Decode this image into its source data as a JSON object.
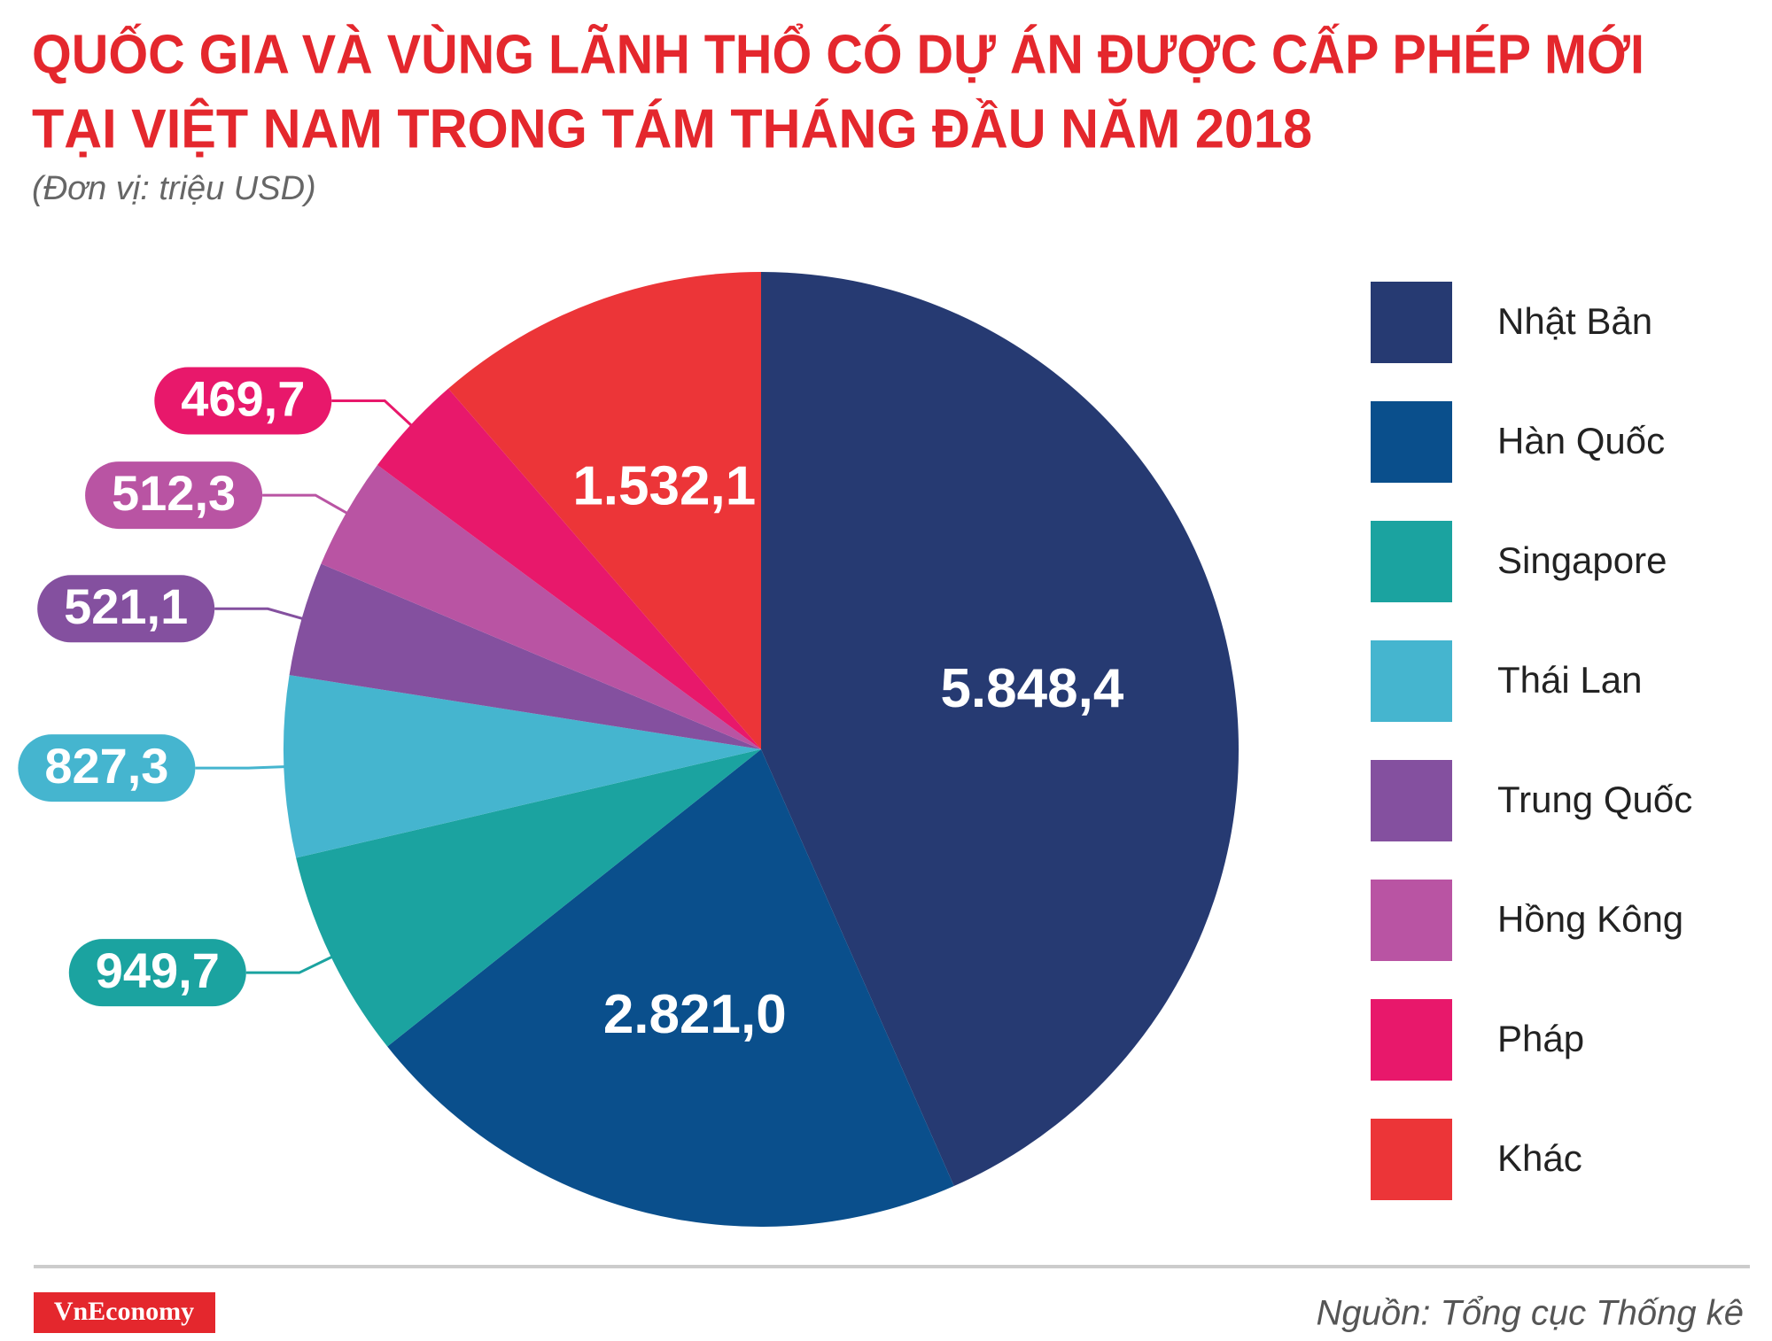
{
  "chart_data": {
    "type": "pie",
    "title": [
      "QUỐC GIA VÀ VÙNG LÃNH THỔ CÓ DỰ ÁN ĐƯỢC CẤP PHÉP MỚI",
      "TẠI VIỆT NAM TRONG TÁM THÁNG ĐẦU NĂM 2018"
    ],
    "subtitle": "(Đơn vị: triệu USD)",
    "categories": [
      "Nhật Bản",
      "Hàn Quốc",
      "Singapore",
      "Thái Lan",
      "Trung Quốc",
      "Hồng Kông",
      "Pháp",
      "Khác"
    ],
    "values": [
      5848.4,
      2821.0,
      949.7,
      827.3,
      521.1,
      512.3,
      469.7,
      1532.1
    ],
    "value_labels": [
      "5.848,4",
      "2.821,0",
      "949,7",
      "827,3",
      "521,1",
      "512,3",
      "469,7",
      "1.532,1"
    ],
    "colors": [
      "#263a72",
      "#0a4f8c",
      "#1ba3a0",
      "#45b5cf",
      "#84509f",
      "#b954a3",
      "#e8186b",
      "#ec3538"
    ],
    "legend": "right"
  },
  "logo": "VnEconomy",
  "source": "Nguồn: Tổng cục Thống kê"
}
